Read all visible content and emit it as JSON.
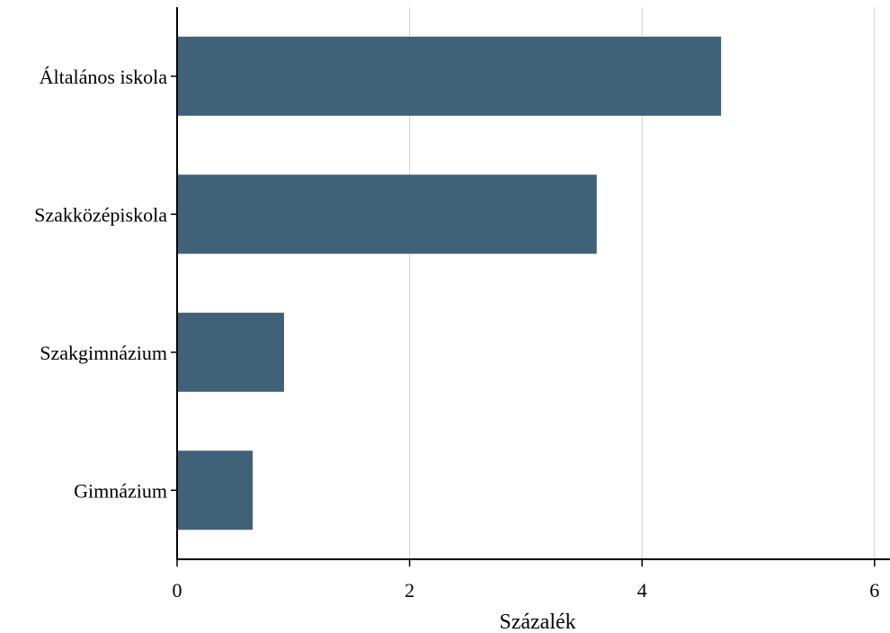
{
  "chart_data": {
    "type": "bar",
    "orientation": "horizontal",
    "categories": [
      "Általános iskola",
      "Szakközépiskola",
      "Szakgimnázium",
      "Gimnázium"
    ],
    "values": [
      4.68,
      3.61,
      0.92,
      0.65
    ],
    "xlabel": "Százalék",
    "ylabel": "",
    "xlim": [
      0,
      6.05
    ],
    "xticks": [
      0,
      2,
      4,
      6
    ],
    "xtick_labels": [
      "0",
      "2",
      "4",
      "6"
    ],
    "grid": "vertical",
    "legend": "none",
    "bar_color": "#3f6279",
    "grid_color": "#d0d0d0"
  }
}
